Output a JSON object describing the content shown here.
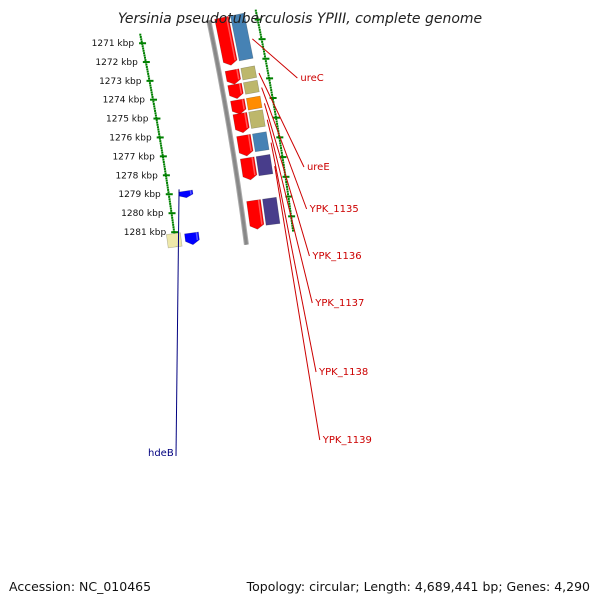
{
  "title": "Yersinia pseudotuberculosis YPIII, complete genome",
  "accession": "Accession: NC_010465",
  "topology": "Topology: circular; Length: 4,689,441 bp; Genes: 4,290",
  "ticks": [
    "1271 kbp",
    "1272 kbp",
    "1273 kbp",
    "1274 kbp",
    "1275 kbp",
    "1276 kbp",
    "1277 kbp",
    "1278 kbp",
    "1279 kbp",
    "1280 kbp",
    "1281 kbp"
  ],
  "genes": [
    {
      "name": "ureC",
      "fill": "#4682b4",
      "label_color": "#cc0000"
    },
    {
      "name": "ureE",
      "fill": "#bdb76b",
      "label_color": "#cc0000"
    },
    {
      "name": "YPK_1135",
      "fill": "#bdb76b",
      "label_color": "#cc0000"
    },
    {
      "name": "YPK_1136",
      "fill": "#ff8c00",
      "label_color": "#cc0000"
    },
    {
      "name": "YPK_1137",
      "fill": "#bdb76b",
      "label_color": "#cc0000"
    },
    {
      "name": "YPK_1138",
      "fill": "#4682b4",
      "label_color": "#cc0000"
    },
    {
      "name": "YPK_1139",
      "fill": "#483d8b",
      "label_color": "#cc0000"
    },
    {
      "name": "hdeB",
      "fill": "#0000ff",
      "label_color": "#000080"
    }
  ],
  "colors": {
    "cds_track": "#ff0000",
    "backbone": "#888888",
    "tick_marks": "#008000",
    "unlabeled_feature": "#eee8aa"
  }
}
